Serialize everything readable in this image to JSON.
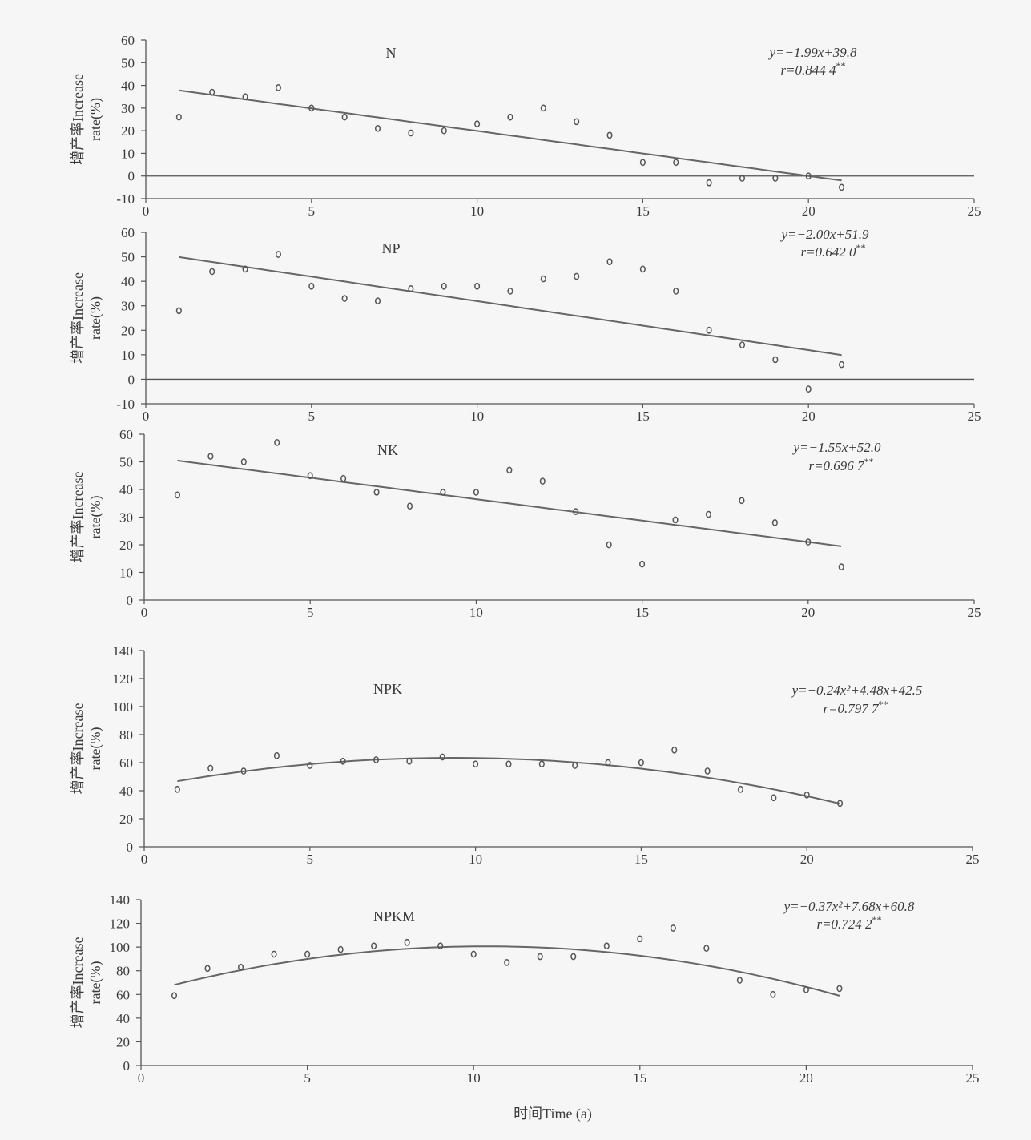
{
  "xlabel": "时间Time (a)",
  "ylabel_line1": "增产率Increase",
  "ylabel_line2": "rate(%)",
  "colors": {
    "axis": "#555555",
    "line": "#666666",
    "marker": "#555555",
    "text": "#3a3a3a"
  },
  "chart_data": [
    {
      "type": "scatter",
      "label": "N",
      "equation": "y=−1.99x+39.8",
      "r_text": "r=0.844 4**",
      "x": [
        1,
        2,
        3,
        4,
        5,
        6,
        7,
        8,
        9,
        10,
        11,
        12,
        13,
        14,
        15,
        16,
        17,
        18,
        19,
        20,
        21
      ],
      "y": [
        26,
        37,
        35,
        39,
        30,
        26,
        21,
        19,
        20,
        23,
        26,
        30,
        24,
        18,
        6,
        6,
        -3,
        -1,
        -1,
        0,
        -5
      ],
      "fit": {
        "kind": "linear",
        "coef": [
          39.8,
          -1.99
        ],
        "x_range": [
          1,
          21
        ]
      },
      "xlim": [
        0,
        25
      ],
      "xticks": [
        0,
        5,
        10,
        15,
        20,
        25
      ],
      "ylim": [
        -10,
        60
      ],
      "yticks": [
        -10,
        0,
        10,
        20,
        30,
        40,
        50,
        60
      ],
      "zero_line": true
    },
    {
      "type": "scatter",
      "label": "NP",
      "equation": "y=−2.00x+51.9",
      "r_text": "r=0.642 0**",
      "x": [
        1,
        2,
        3,
        4,
        5,
        6,
        7,
        8,
        9,
        10,
        11,
        12,
        13,
        14,
        15,
        16,
        17,
        18,
        19,
        20,
        21
      ],
      "y": [
        28,
        44,
        45,
        51,
        38,
        33,
        32,
        37,
        38,
        38,
        36,
        41,
        42,
        48,
        45,
        36,
        20,
        14,
        8,
        -4,
        6
      ],
      "fit": {
        "kind": "linear",
        "coef": [
          51.9,
          -2.0
        ],
        "x_range": [
          1,
          21
        ]
      },
      "xlim": [
        0,
        25
      ],
      "xticks": [
        0,
        5,
        10,
        15,
        20,
        25
      ],
      "ylim": [
        -10,
        60
      ],
      "yticks": [
        -10,
        0,
        10,
        20,
        30,
        40,
        50,
        60
      ],
      "zero_line": true
    },
    {
      "type": "scatter",
      "label": "NK",
      "equation": "y=−1.55x+52.0",
      "r_text": "r=0.696 7**",
      "x": [
        1,
        2,
        3,
        4,
        5,
        6,
        7,
        8,
        9,
        10,
        11,
        12,
        13,
        14,
        15,
        16,
        17,
        18,
        19,
        20,
        21
      ],
      "y": [
        38,
        52,
        50,
        57,
        45,
        44,
        39,
        34,
        39,
        39,
        47,
        43,
        32,
        20,
        13,
        29,
        31,
        36,
        28,
        21,
        12
      ],
      "fit": {
        "kind": "linear",
        "coef": [
          52.0,
          -1.55
        ],
        "x_range": [
          1,
          21
        ]
      },
      "xlim": [
        0,
        25
      ],
      "xticks": [
        0,
        5,
        10,
        15,
        20,
        25
      ],
      "ylim": [
        0,
        60
      ],
      "yticks": [
        0,
        10,
        20,
        30,
        40,
        50,
        60
      ],
      "zero_line": false
    },
    {
      "type": "scatter",
      "label": "NPK",
      "equation": "y=−0.24x²+4.48x+42.5",
      "r_text": "r=0.797 7**",
      "x": [
        1,
        2,
        3,
        4,
        5,
        6,
        7,
        8,
        9,
        10,
        11,
        12,
        13,
        14,
        15,
        16,
        17,
        18,
        19,
        20,
        21
      ],
      "y": [
        41,
        56,
        54,
        65,
        58,
        61,
        62,
        61,
        64,
        59,
        59,
        59,
        58,
        60,
        60,
        69,
        54,
        41,
        35,
        37,
        31
      ],
      "fit": {
        "kind": "quadratic",
        "coef": [
          42.5,
          4.48,
          -0.24
        ],
        "x_range": [
          1,
          21
        ]
      },
      "xlim": [
        0,
        25
      ],
      "xticks": [
        0,
        5,
        10,
        15,
        20,
        25
      ],
      "ylim": [
        0,
        140
      ],
      "yticks": [
        0,
        20,
        40,
        60,
        80,
        100,
        120,
        140
      ],
      "zero_line": false
    },
    {
      "type": "scatter",
      "label": "NPKM",
      "equation": "y=−0.37x²+7.68x+60.8",
      "r_text": "r=0.724 2**",
      "x": [
        1,
        2,
        3,
        4,
        5,
        6,
        7,
        8,
        9,
        10,
        11,
        12,
        13,
        14,
        15,
        16,
        17,
        18,
        19,
        20,
        21
      ],
      "y": [
        59,
        82,
        83,
        94,
        94,
        98,
        101,
        104,
        101,
        94,
        87,
        92,
        92,
        101,
        107,
        116,
        99,
        72,
        60,
        64,
        65
      ],
      "fit": {
        "kind": "quadratic",
        "coef": [
          60.8,
          7.68,
          -0.37
        ],
        "x_range": [
          1,
          21
        ]
      },
      "xlim": [
        0,
        25
      ],
      "xticks": [
        0,
        5,
        10,
        15,
        20,
        25
      ],
      "ylim": [
        0,
        140
      ],
      "yticks": [
        0,
        20,
        40,
        60,
        80,
        100,
        120,
        140
      ],
      "zero_line": false
    }
  ]
}
